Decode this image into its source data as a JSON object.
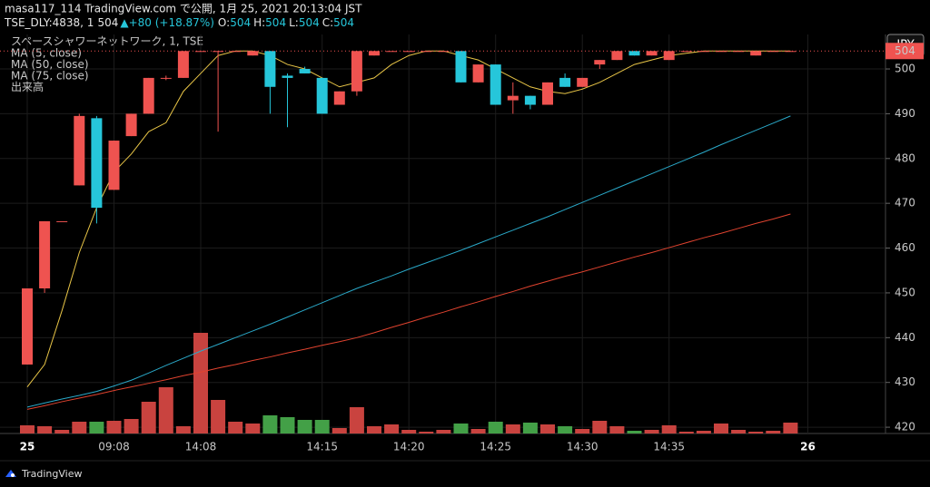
{
  "header": {
    "line1": "masa117_114 TradingView.com で公開, 1月 25, 2021 20:13:04 JST",
    "ticker": "TSE_DLY:4838, 1",
    "last": "504",
    "change": "▲+80 (+18.87%)",
    "o_label": "O:",
    "o": "504",
    "h_label": "H:",
    "h": "504",
    "l_label": "L:",
    "l": "504",
    "c_label": "C:",
    "c": "504",
    "currency": "JPY",
    "brand": "TradingView"
  },
  "chart_data": {
    "type": "candlestick",
    "title": "スペースシャワーネットワーク, 1, TSE",
    "volume_name": "出来高",
    "categories": [
      "25",
      null,
      null,
      null,
      null,
      "09:08",
      null,
      null,
      null,
      null,
      "14:08",
      null,
      null,
      null,
      null,
      null,
      null,
      "14:15",
      null,
      null,
      null,
      null,
      "14:20",
      null,
      null,
      null,
      null,
      "14:25",
      null,
      null,
      null,
      null,
      "14:30",
      null,
      null,
      null,
      null,
      "14:35",
      null,
      null,
      null,
      null,
      null,
      null,
      null
    ],
    "end_label": "26",
    "open": [
      434,
      451,
      466,
      474,
      489,
      473,
      485,
      490,
      498,
      498,
      504,
      504,
      504,
      503,
      504,
      498.5,
      500,
      498,
      492,
      495,
      503,
      504,
      504,
      504,
      504,
      504,
      497,
      501,
      493,
      494,
      492,
      498,
      496,
      501,
      502,
      504,
      503,
      502,
      504,
      504,
      504,
      504,
      503,
      504,
      504
    ],
    "high": [
      451,
      466,
      466,
      490,
      489.5,
      484,
      490,
      498,
      498.5,
      504,
      504,
      504,
      504,
      504,
      504,
      499,
      500.5,
      498,
      495,
      504,
      504,
      504,
      504,
      504,
      504,
      504,
      501,
      501,
      497,
      494,
      497,
      499,
      498,
      502,
      504,
      504,
      504,
      504,
      504,
      504,
      504,
      504,
      504,
      504,
      504
    ],
    "low": [
      434,
      450,
      466,
      474,
      465.5,
      473,
      485,
      490,
      497.5,
      498,
      504,
      486,
      504,
      503,
      490,
      487,
      499,
      490,
      492,
      494,
      503,
      504,
      504,
      504,
      504,
      497,
      497,
      492,
      490,
      491,
      492,
      496,
      496,
      500,
      502,
      503,
      503,
      502,
      504,
      504,
      504,
      504,
      503,
      504,
      504
    ],
    "close": [
      451,
      466,
      466,
      489.5,
      469,
      484,
      490,
      498,
      498,
      504,
      504,
      504,
      504,
      504,
      496,
      498,
      499,
      490,
      495,
      504,
      504,
      504,
      504,
      504,
      504,
      497,
      501,
      492,
      494,
      492,
      497,
      496,
      498,
      502,
      504,
      503,
      504,
      504,
      504,
      504,
      504,
      504,
      504,
      504,
      504
    ],
    "volume": [
      9,
      8,
      4,
      13,
      13,
      14,
      16,
      35,
      51,
      8,
      111,
      37,
      13,
      11,
      20,
      18,
      15,
      15,
      6,
      29,
      8,
      10,
      4,
      2,
      4,
      11,
      5,
      13,
      10,
      12,
      10,
      8,
      5,
      14,
      8,
      3,
      4,
      9,
      2,
      3,
      11,
      4,
      2,
      3,
      12
    ],
    "up_color": "#ef5350",
    "down_color": "#26c6da",
    "vol_up_color": "#c9433f",
    "vol_down_color": "#43a047",
    "series": [
      {
        "name": "MA (5, close)",
        "color": "#e8c547",
        "values": [
          429,
          434,
          446,
          459,
          469,
          477,
          481,
          486,
          488,
          495,
          499,
          503,
          504,
          504,
          503,
          501,
          500,
          498,
          496,
          497,
          498,
          501,
          503,
          504,
          504,
          503,
          502,
          500,
          498,
          496,
          495,
          494.5,
          495.5,
          497,
          499,
          501,
          502,
          503,
          503.5,
          504,
          504,
          504,
          504,
          504,
          504
        ]
      },
      {
        "name": "MA (50, close)",
        "color": "#2aa9c9",
        "values": [
          424.5,
          425.4,
          426.3,
          427.1,
          428,
          429.2,
          430.5,
          432.1,
          433.8,
          435.4,
          437,
          438.5,
          440,
          441.5,
          443,
          444.6,
          446.2,
          447.8,
          449.4,
          451,
          452.4,
          453.8,
          455.3,
          456.7,
          458.1,
          459.5,
          461,
          462.5,
          464,
          465.5,
          467,
          468.6,
          470.2,
          471.8,
          473.4,
          475,
          476.6,
          478.2,
          479.8,
          481.4,
          483.1,
          484.7,
          486.3,
          487.9,
          489.5
        ]
      },
      {
        "name": "MA (75, close)",
        "color": "#e0432f",
        "values": [
          424,
          424.8,
          425.7,
          426.5,
          427.3,
          428.2,
          429,
          429.8,
          430.6,
          431.5,
          432.3,
          433.2,
          434,
          434.9,
          435.7,
          436.6,
          437.4,
          438.3,
          439.1,
          440,
          441.1,
          442.3,
          443.4,
          444.6,
          445.7,
          446.9,
          448,
          449.2,
          450.3,
          451.5,
          452.6,
          453.7,
          454.7,
          455.8,
          456.9,
          458,
          459,
          460.1,
          461.2,
          462.3,
          463.3,
          464.4,
          465.5,
          466.5,
          467.6
        ]
      }
    ],
    "last_price": 504,
    "ylim": [
      418.6,
      507.7
    ],
    "yticks": [
      420,
      430,
      440,
      450,
      460,
      470,
      480,
      490,
      500
    ],
    "grid": true
  }
}
